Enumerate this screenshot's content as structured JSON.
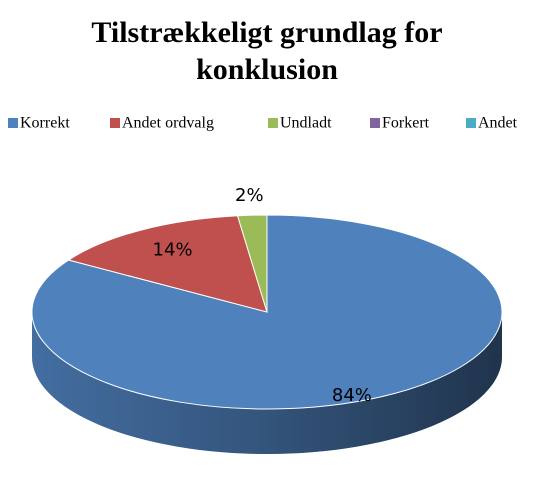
{
  "chart_data": {
    "type": "pie3d",
    "title": "Tilstrækkeligt grundlag for konklusion",
    "categories": [
      "Korrekt",
      "Andet ordvalg",
      "Undladt",
      "Forkert",
      "Andet"
    ],
    "values": [
      84,
      14,
      2,
      0,
      0
    ],
    "value_labels": [
      "84%",
      "14%",
      "2%",
      null,
      null
    ],
    "colors": [
      "#4f81bd",
      "#c0504d",
      "#9bbb59",
      "#8064a2",
      "#4bacc6"
    ],
    "legend": "top"
  }
}
